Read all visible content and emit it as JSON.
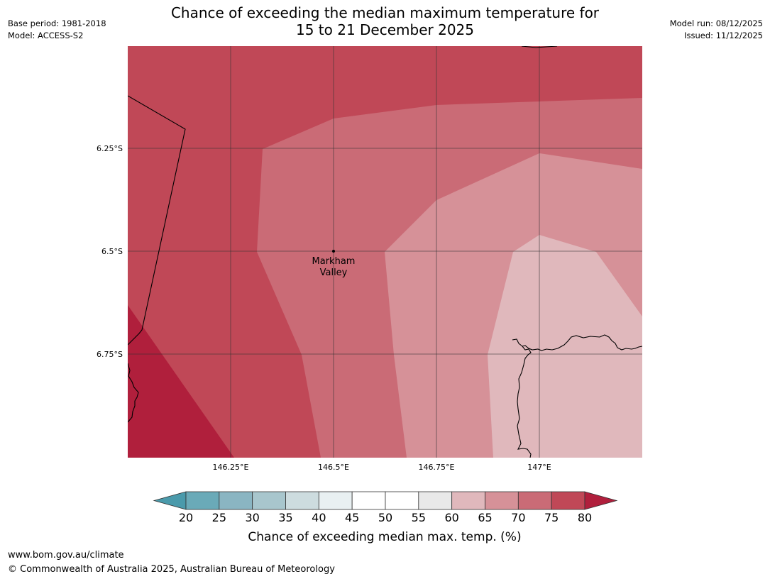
{
  "title": {
    "line1": "Chance of exceeding the median maximum temperature for",
    "line2": "15 to 21 December 2025"
  },
  "meta_left": {
    "base_period": "Base period: 1981-2018",
    "model": "Model: ACCESS-S2"
  },
  "meta_right": {
    "model_run": "Model run: 08/12/2025",
    "issued": "Issued: 11/12/2025"
  },
  "map": {
    "lat_ticks": [
      "6.25°S",
      "6.5°S",
      "6.75°S"
    ],
    "lon_ticks": [
      "146.25°E",
      "146.5°E",
      "146.75°E",
      "147°E"
    ],
    "place": {
      "name_line1": "Markham",
      "name_line2": "Valley",
      "marker_icon": "location-dot-icon"
    },
    "zones": [
      {
        "name": "zone-75-80",
        "range": "75–80%",
        "color": "#b01f3c"
      },
      {
        "name": "zone-70-75",
        "range": "70–75%",
        "color": "#c04857"
      },
      {
        "name": "zone-65-70",
        "range": "65–70%",
        "color": "#ca6b76"
      },
      {
        "name": "zone-60-65",
        "range": "60–65%",
        "color": "#d69198"
      },
      {
        "name": "zone-55-60",
        "range": "55–60%",
        "color": "#e0b8bc"
      }
    ]
  },
  "colorbar": {
    "ticks": [
      "20",
      "25",
      "30",
      "35",
      "40",
      "45",
      "50",
      "55",
      "60",
      "65",
      "70",
      "75",
      "80"
    ],
    "colors": [
      "#6aaab8",
      "#8ab5c2",
      "#a8c6cd",
      "#cddcdf",
      "#e9f0f2",
      "#ffffff",
      "#ffffff",
      "#e9e9e9",
      "#e0b8bc",
      "#d69198",
      "#ca6b76",
      "#c04857"
    ],
    "under_color": "#4a9aab",
    "over_color": "#b01f3c",
    "title": "Chance of exceeding median max. temp. (%)"
  },
  "footer": {
    "url": "www.bom.gov.au/climate",
    "copyright": "© Commonwealth of Australia 2025, Australian Bureau of Meteorology"
  }
}
